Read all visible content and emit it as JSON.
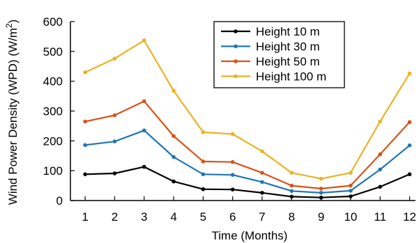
{
  "chart_data": {
    "type": "line",
    "xlabel": "Time (Months)",
    "ylabel": "Wind Power Density (WPD) (W/m",
    "ylabel_sup": "2",
    "ylabel_close": ")",
    "x": [
      1,
      2,
      3,
      4,
      5,
      6,
      7,
      8,
      9,
      10,
      11,
      12
    ],
    "xlim": [
      0.5,
      12.2
    ],
    "ylim": [
      0,
      600
    ],
    "yticks": [
      0,
      100,
      200,
      300,
      400,
      500,
      600
    ],
    "grid": false,
    "legend_position": "top-center",
    "series": [
      {
        "name": "Height 10 m",
        "color": "#000000",
        "values": [
          88,
          91,
          113,
          64,
          38,
          37,
          26,
          13,
          10,
          14,
          46,
          88
        ]
      },
      {
        "name": "Height 30 m",
        "color": "#1f77b4",
        "values": [
          186,
          198,
          235,
          146,
          88,
          86,
          62,
          32,
          26,
          33,
          104,
          185
        ]
      },
      {
        "name": "Height 50 m",
        "color": "#d95319",
        "values": [
          265,
          286,
          333,
          216,
          131,
          129,
          93,
          50,
          40,
          50,
          155,
          263
        ]
      },
      {
        "name": "Height 100 m",
        "color": "#edb120",
        "values": [
          430,
          476,
          537,
          368,
          229,
          223,
          165,
          93,
          73,
          93,
          265,
          426
        ]
      }
    ]
  }
}
